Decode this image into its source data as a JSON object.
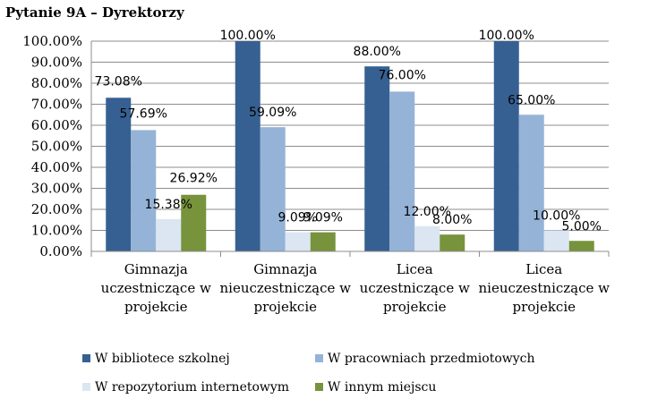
{
  "chart_data": {
    "type": "bar",
    "title": "Pytanie 9A – Dyrektorzy",
    "categories": [
      [
        "Gimnazja",
        "uczestniczące w",
        "projekcie"
      ],
      [
        "Gimnazja",
        "nieuczestniczące w",
        "projekcie"
      ],
      [
        "Licea",
        "uczestniczące w",
        "projekcie"
      ],
      [
        "Licea",
        "nieuczestniczące w",
        "projekcie"
      ]
    ],
    "series": [
      {
        "name": "W bibliotece szkolnej",
        "color": "#376092",
        "values": [
          73.08,
          100.0,
          88.0,
          100.0
        ],
        "labels": [
          "73.08%",
          "100.00%",
          "88.00%",
          "100.00%"
        ]
      },
      {
        "name": "W pracowniach przedmiotowych",
        "color": "#95B3D7",
        "values": [
          57.69,
          59.09,
          76.0,
          65.0
        ],
        "labels": [
          "57.69%",
          "59.09%",
          "76.00%",
          "65.00%"
        ]
      },
      {
        "name": "W repozytorium internetowym",
        "color": "#DCE6F2",
        "values": [
          15.38,
          9.09,
          12.0,
          10.0
        ],
        "labels": [
          "15.38%",
          "9.09%",
          "12.00%",
          "10.00%"
        ]
      },
      {
        "name": "W innym miejscu",
        "color": "#77933C",
        "values": [
          26.92,
          9.09,
          8.0,
          5.0
        ],
        "labels": [
          "26.92%",
          "9.09%",
          "8.00%",
          "5.00%"
        ]
      }
    ],
    "yticks": [
      "0.00%",
      "10.00%",
      "20.00%",
      "30.00%",
      "40.00%",
      "50.00%",
      "60.00%",
      "70.00%",
      "80.00%",
      "90.00%",
      "100.00%"
    ],
    "ylim": [
      0,
      100
    ],
    "grid": true,
    "legend_position": "bottom"
  }
}
